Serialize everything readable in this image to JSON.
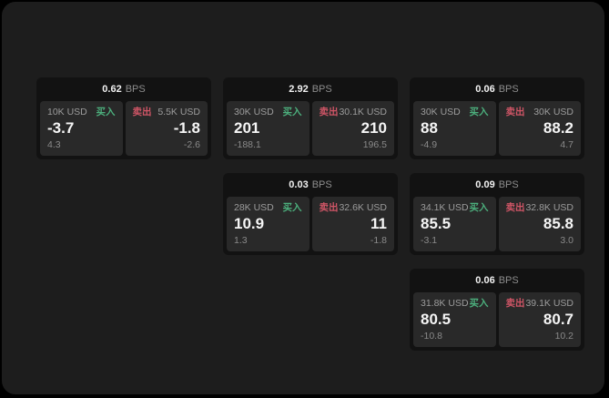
{
  "labels": {
    "bps_unit": "BPS",
    "buy": "买入",
    "sell": "卖出"
  },
  "colors": {
    "buy_green": "#4CAF7D",
    "sell_red": "#CF5566",
    "window_background": "#1D1D1D",
    "card_background": "#121212",
    "panel_background": "#292929"
  },
  "cards": [
    {
      "bps": "0.62",
      "buy": {
        "amount": "10K USD",
        "price": "-3.7",
        "delta": "4.3"
      },
      "sell": {
        "amount": "5.5K USD",
        "price": "-1.8",
        "delta": "-2.6"
      }
    },
    {
      "bps": "2.92",
      "buy": {
        "amount": "30K USD",
        "price": "201",
        "delta": "-188.1"
      },
      "sell": {
        "amount": "30.1K USD",
        "price": "210",
        "delta": "196.5"
      }
    },
    {
      "bps": "0.06",
      "buy": {
        "amount": "30K USD",
        "price": "88",
        "delta": "-4.9"
      },
      "sell": {
        "amount": "30K USD",
        "price": "88.2",
        "delta": "4.7"
      }
    },
    {
      "bps": "0.03",
      "buy": {
        "amount": "28K USD",
        "price": "10.9",
        "delta": "1.3"
      },
      "sell": {
        "amount": "32.6K USD",
        "price": "11",
        "delta": "-1.8"
      }
    },
    {
      "bps": "0.09",
      "buy": {
        "amount": "34.1K USD",
        "price": "85.5",
        "delta": "-3.1"
      },
      "sell": {
        "amount": "32.8K USD",
        "price": "85.8",
        "delta": "3.0"
      }
    },
    {
      "bps": "0.06",
      "buy": {
        "amount": "31.8K USD",
        "price": "80.5",
        "delta": "-10.8"
      },
      "sell": {
        "amount": "39.1K USD",
        "price": "80.7",
        "delta": "10.2"
      }
    }
  ]
}
